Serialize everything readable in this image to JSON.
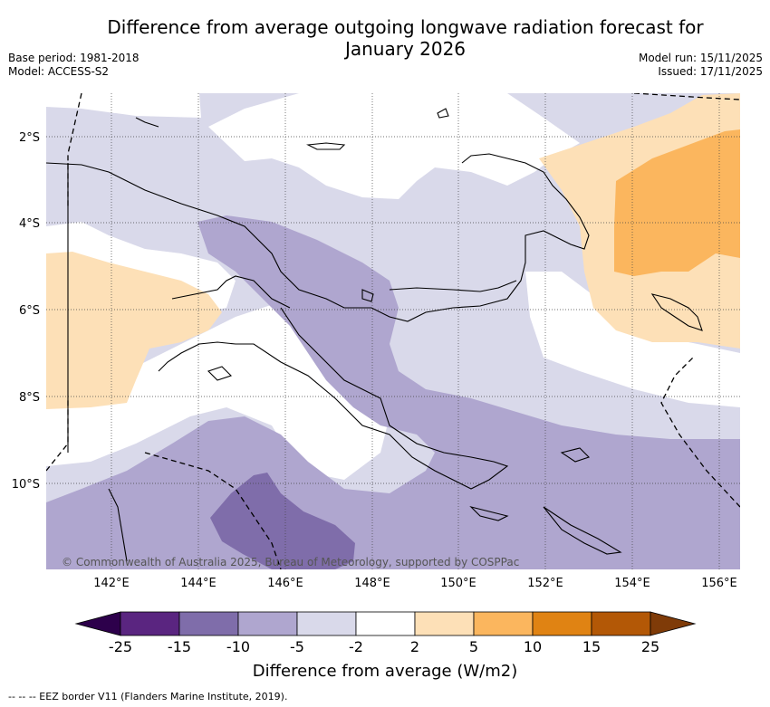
{
  "title": {
    "line1": "Difference from average outgoing longwave radiation forecast for",
    "line2": "January 2026"
  },
  "meta": {
    "base_period": "Base period: 1981-2018",
    "model": "Model: ACCESS-S2",
    "model_run": "Model run: 15/11/2025",
    "issued": "Issued: 17/11/2025"
  },
  "map": {
    "lat_labels": [
      "2°S",
      "4°S",
      "6°S",
      "8°S",
      "10°S"
    ],
    "lon_labels": [
      "142°E",
      "144°E",
      "146°E",
      "148°E",
      "150°E",
      "152°E",
      "154°E",
      "156°E"
    ],
    "copyright": "© Commonwealth of Australia 2025, Bureau of Meteorology, supported by COSPPac"
  },
  "colorbar": {
    "colors": [
      "#5a2580",
      "#7f6daa",
      "#afa6cf",
      "#d9d9ea",
      "#ffffff",
      "#fde0b7",
      "#fbb65e",
      "#e08313",
      "#b35806"
    ],
    "end_low": "#2d004b",
    "end_high": "#7f3b08",
    "ticks": [
      "-25",
      "-15",
      "-10",
      "-5",
      "-2",
      "2",
      "5",
      "10",
      "15",
      "25"
    ],
    "label": "Difference from average (W/m2)"
  },
  "footnote": "--  --  -- EEZ border V11 (Flanders Marine Institute, 2019)."
}
